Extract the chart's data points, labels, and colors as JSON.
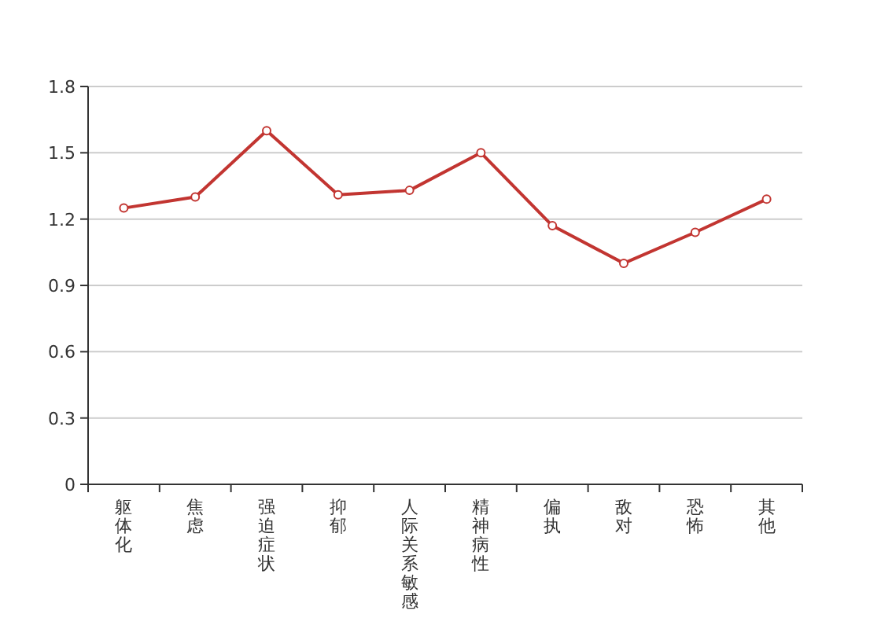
{
  "chart_data": {
    "type": "line",
    "categories": [
      "躯体化",
      "焦虑",
      "强迫症状",
      "抑郁",
      "人际关系敏感",
      "精神病性",
      "偏执",
      "敌对",
      "恐怖",
      "其他"
    ],
    "series": [
      {
        "color": "#c23531",
        "values": [
          1.25,
          1.3,
          1.6,
          1.31,
          1.33,
          1.5,
          1.17,
          1.0,
          1.14,
          1.29
        ]
      }
    ],
    "ylim": [
      0,
      1.8
    ],
    "yticks": [
      0,
      0.3,
      0.6,
      0.9,
      1.2,
      1.5,
      1.8
    ],
    "grid": "y",
    "marker": "circle",
    "line_style": "solid"
  }
}
